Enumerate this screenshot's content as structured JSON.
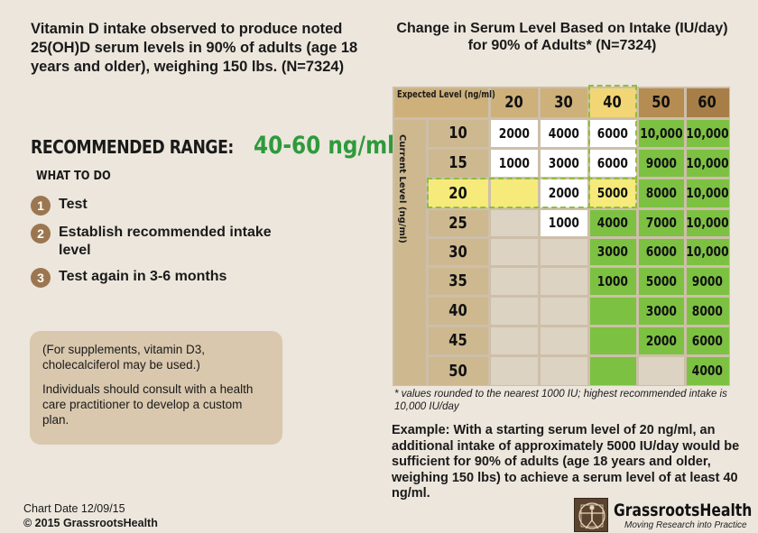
{
  "intro": "Vitamin D intake observed to produce noted 25(OH)D serum levels in 90% of adults (age 18 years and older), weighing 150 lbs.  (N=7324)",
  "recommended_range": {
    "label": "RECOMMENDED RANGE:",
    "value": "40-60 ng/ml"
  },
  "what_to_do": {
    "heading": "WHAT TO DO",
    "steps": [
      {
        "num": "1",
        "text": "Test"
      },
      {
        "num": "2",
        "text": "Establish recommended intake level"
      },
      {
        "num": "3",
        "text": "Test again in 3-6 months"
      }
    ]
  },
  "note": {
    "line1": "(For supplements, vitamin D3, cholecalciferol may be used.)",
    "line2": "Individuals should consult with a health care practitioner to develop a custom plan."
  },
  "chart_date": "Chart Date 12/09/15",
  "copyright": "© 2015 GrassrootsHealth",
  "table": {
    "title": "Change in Serum Level Based on Intake (IU/day) for 90% of Adults* (N=7324)",
    "expected_label": "Expected Level (ng/ml)",
    "current_label": "Current Level (ng/ml)",
    "expected_levels": [
      "20",
      "30",
      "40",
      "50",
      "60"
    ],
    "current_levels": [
      "10",
      "15",
      "20",
      "25",
      "30",
      "35",
      "40",
      "45",
      "50"
    ],
    "rows": [
      [
        "2000",
        "4000",
        "6000",
        "10,000",
        "10,000"
      ],
      [
        "1000",
        "3000",
        "6000",
        "9000",
        "10,000"
      ],
      [
        "",
        "2000",
        "5000",
        "8000",
        "10,000"
      ],
      [
        "",
        "1000",
        "4000",
        "7000",
        "10,000"
      ],
      [
        "",
        "",
        "3000",
        "6000",
        "10,000"
      ],
      [
        "",
        "",
        "1000",
        "5000",
        "9000"
      ],
      [
        "",
        "",
        "",
        "3000",
        "8000"
      ],
      [
        "",
        "",
        "",
        "2000",
        "6000"
      ],
      [
        "",
        "",
        "",
        "",
        "4000"
      ]
    ],
    "highlight": {
      "row": "20",
      "column": "40"
    },
    "colors": {
      "header_expected": "#cdb07a",
      "header_expected_hi": "#f2d675",
      "header_50": "#b58c52",
      "header_60": "#a77e47",
      "row_header": "#cdb890",
      "white_cell": "#ffffff",
      "green_cell": "#7dc142",
      "empty_cell": "#ddd3c2",
      "highlight": "#f6ea7a"
    }
  },
  "footnote": "* values rounded to the nearest 1000 IU; highest recommended intake is 10,000 IU/day",
  "example": "Example: With a starting serum level of 20 ng/ml, an additional intake of approximately 5000 IU/day would be sufficient for 90% of adults (age 18 years and older, weighing 150 lbs) to achieve a serum level of at least 40 ng/ml.",
  "logo": {
    "name": "GrassrootsHealth",
    "tagline": "Moving Research into Practice"
  }
}
